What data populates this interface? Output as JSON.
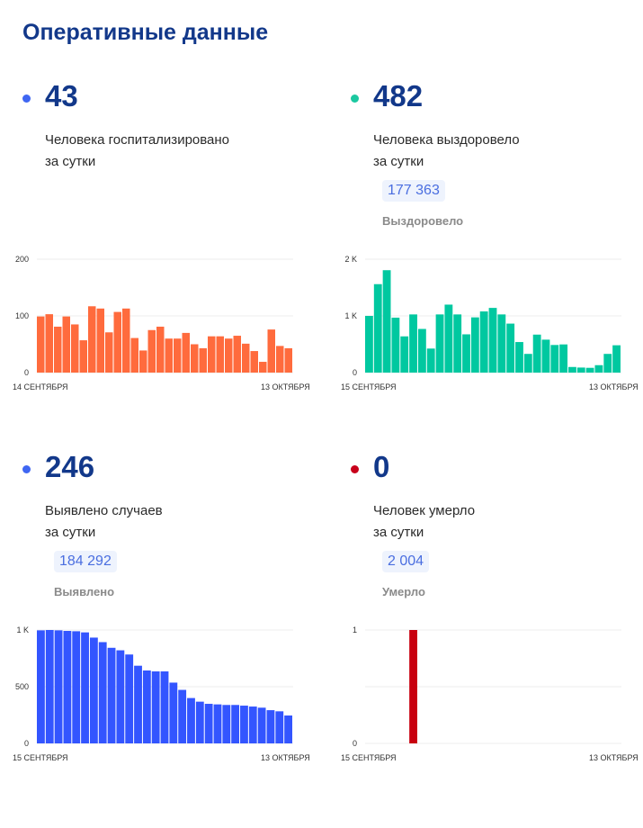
{
  "title": "Оперативные данные",
  "cards": [
    {
      "id": "hospitalized",
      "value": "43",
      "label1": "Человека госпитализировано",
      "label2": "за сутки",
      "total": null,
      "total_label": null,
      "dot_color": "#3f66f2"
    },
    {
      "id": "recovered",
      "value": "482",
      "label1": "Человека выздоровело",
      "label2": "за сутки",
      "total": "177 363",
      "total_label": "Выздоровело",
      "dot_color": "#1bc8a0"
    },
    {
      "id": "detected",
      "value": "246",
      "label1": "Выявлено случаев",
      "label2": "за сутки",
      "total": "184 292",
      "total_label": "Выявлено",
      "dot_color": "#3f66f2"
    },
    {
      "id": "deaths",
      "value": "0",
      "label1": "Человек умерло",
      "label2": "за сутки",
      "total": "2 004",
      "total_label": "Умерло",
      "dot_color": "#c8001a"
    }
  ],
  "chart_data": [
    {
      "type": "bar",
      "color": "#ff6b3d",
      "ylim": [
        0,
        200
      ],
      "yticks": [
        {
          "v": 0,
          "label": "0"
        },
        {
          "v": 100,
          "label": "100"
        },
        {
          "v": 200,
          "label": "200"
        }
      ],
      "x_start_label": "14 СЕНТЯБРЯ",
      "x_end_label": "13 ОКТЯБРЯ",
      "grid": true,
      "values": [
        99,
        103,
        81,
        99,
        85,
        57,
        117,
        113,
        71,
        107,
        113,
        61,
        39,
        75,
        81,
        60,
        60,
        70,
        50,
        43,
        64,
        64,
        60,
        65,
        51,
        38,
        19,
        76,
        47,
        43
      ]
    },
    {
      "type": "bar",
      "color": "#00c8a0",
      "ylim": [
        0,
        2000
      ],
      "yticks": [
        {
          "v": 0,
          "label": "0"
        },
        {
          "v": 1000,
          "label": "1 K"
        },
        {
          "v": 2000,
          "label": "2 K"
        }
      ],
      "x_start_label": "15 СЕНТЯБРЯ",
      "x_end_label": "13 ОКТЯБРЯ",
      "grid": true,
      "values": [
        1000,
        1560,
        1806,
        969,
        639,
        1026,
        770,
        424,
        1026,
        1199,
        1026,
        675,
        974,
        1079,
        1141,
        1026,
        864,
        539,
        330,
        670,
        581,
        487,
        497,
        99,
        89,
        84,
        131,
        330,
        482
      ]
    },
    {
      "type": "bar",
      "color": "#3355ff",
      "ylim": [
        0,
        1000
      ],
      "yticks": [
        {
          "v": 0,
          "label": "0"
        },
        {
          "v": 500,
          "label": "500"
        },
        {
          "v": 1000,
          "label": "1 K"
        }
      ],
      "x_start_label": "15 СЕНТЯБРЯ",
      "x_end_label": "13 ОКТЯБРЯ",
      "grid": true,
      "values": [
        997,
        1000,
        997,
        992,
        989,
        979,
        933,
        893,
        843,
        821,
        784,
        685,
        643,
        635,
        635,
        536,
        472,
        400,
        368,
        349,
        344,
        339,
        339,
        333,
        325,
        315,
        293,
        283,
        246
      ]
    },
    {
      "type": "bar",
      "color": "#c8000f",
      "ylim": [
        0,
        1
      ],
      "yticks": [
        {
          "v": 0,
          "label": "0"
        },
        {
          "v": 1,
          "label": "1"
        }
      ],
      "x_start_label": "15 СЕНТЯБРЯ",
      "x_end_label": "13 ОКТЯБРЯ",
      "grid": true,
      "values": [
        0,
        0,
        0,
        0,
        0,
        1,
        0,
        0,
        0,
        0,
        0,
        0,
        0,
        0,
        0,
        0,
        0,
        0,
        0,
        0,
        0,
        0,
        0,
        0,
        0,
        0,
        0,
        0,
        0
      ]
    }
  ]
}
